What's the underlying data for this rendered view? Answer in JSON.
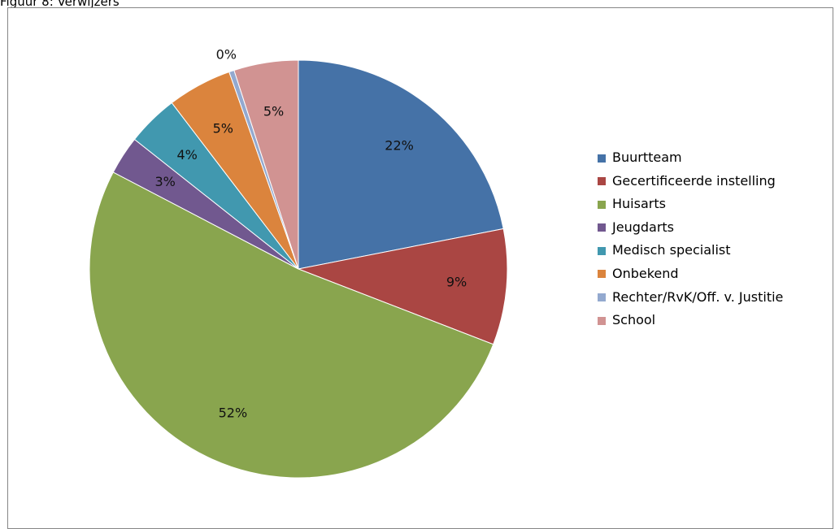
{
  "caption": "Figuur 8: Verwijzers",
  "chart_data": {
    "type": "pie",
    "categories": [
      "Buurtteam",
      "Gecertificeerde instelling",
      "Huisarts",
      "Jeugdarts",
      "Medisch specialist",
      "Onbekend",
      "Rechter/RvK/Off. v. Justitie",
      "School"
    ],
    "values": [
      22,
      9,
      52,
      3,
      4,
      5,
      0.4,
      5
    ],
    "data_labels": [
      "22%",
      "9%",
      "52%",
      "3%",
      "4%",
      "5%",
      "0%",
      "5%"
    ],
    "colors": [
      "#4572A7",
      "#AA4643",
      "#89A54E",
      "#71588F",
      "#4198AF",
      "#DB843D",
      "#93A9CF",
      "#D19392"
    ],
    "legend_position": "right"
  }
}
